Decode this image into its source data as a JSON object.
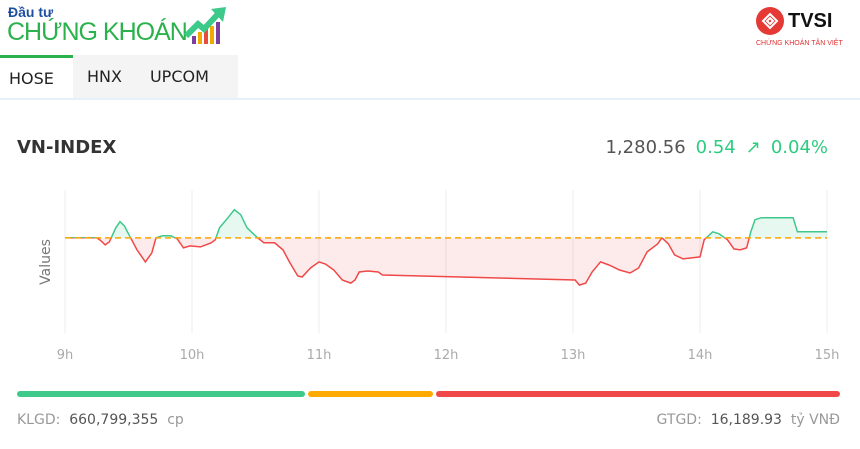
{
  "brand": {
    "logo_small": "Đầu tư",
    "logo_big": "CHỨNG KHOÁN",
    "partner_logo": "TVSI",
    "partner_sub": "CHỨNG KHOÁN TÂN VIỆT",
    "partner_color": "#e53935"
  },
  "tabs": [
    {
      "label": "HOSE",
      "active": true
    },
    {
      "label": "HNX",
      "active": false
    },
    {
      "label": "UPCOM",
      "active": false
    }
  ],
  "index": {
    "name": "VN-INDEX",
    "price": "1,280.56",
    "change": "0.54",
    "arrow_icon": "arrow-up-right-icon",
    "arrow": "↗",
    "change_pct": "0.04%",
    "color_up": "#2ecc80",
    "color_down": "#f04848"
  },
  "chart_data": {
    "type": "line",
    "ylabel": "Values",
    "xlabel": "",
    "x_ticks": [
      "9h",
      "10h",
      "11h",
      "12h",
      "13h",
      "14h",
      "15h"
    ],
    "xlim": [
      "09:00",
      "15:00"
    ],
    "ylim": [
      1271.5,
      1284.3
    ],
    "y_tick_labels": false,
    "grid": "vertical",
    "reference": 1280.02,
    "reference_color": "#ffa500",
    "points": [
      [
        "09:00",
        1280.02
      ],
      [
        "09:15",
        1280.02
      ],
      [
        "09:17",
        1279.75
      ],
      [
        "09:19",
        1279.39
      ],
      [
        "09:21",
        1279.66
      ],
      [
        "09:24",
        1280.92
      ],
      [
        "09:26",
        1281.46
      ],
      [
        "09:28",
        1281.1
      ],
      [
        "09:31",
        1280.02
      ],
      [
        "09:34",
        1278.94
      ],
      [
        "09:38",
        1277.86
      ],
      [
        "09:41",
        1278.67
      ],
      [
        "09:43",
        1280.02
      ],
      [
        "09:46",
        1280.2
      ],
      [
        "09:50",
        1280.2
      ],
      [
        "09:53",
        1279.93
      ],
      [
        "09:56",
        1279.12
      ],
      [
        "09:59",
        1279.3
      ],
      [
        "10:04",
        1279.21
      ],
      [
        "10:09",
        1279.57
      ],
      [
        "10:11",
        1279.84
      ],
      [
        "10:13",
        1280.92
      ],
      [
        "10:17",
        1281.82
      ],
      [
        "10:20",
        1282.54
      ],
      [
        "10:23",
        1282.09
      ],
      [
        "10:26",
        1280.92
      ],
      [
        "10:31",
        1280.02
      ],
      [
        "10:34",
        1279.57
      ],
      [
        "10:39",
        1279.57
      ],
      [
        "10:43",
        1278.94
      ],
      [
        "10:46",
        1277.86
      ],
      [
        "10:50",
        1276.6
      ],
      [
        "10:52",
        1276.51
      ],
      [
        "10:56",
        1277.32
      ],
      [
        "11:00",
        1277.86
      ],
      [
        "11:03",
        1277.68
      ],
      [
        "11:07",
        1277.14
      ],
      [
        "11:11",
        1276.24
      ],
      [
        "11:15",
        1275.97
      ],
      [
        "11:17",
        1276.24
      ],
      [
        "11:19",
        1276.96
      ],
      [
        "11:23",
        1277.05
      ],
      [
        "11:28",
        1276.96
      ],
      [
        "11:30",
        1276.69
      ],
      [
        "13:01",
        1276.24
      ],
      [
        "13:03",
        1275.79
      ],
      [
        "13:06",
        1275.97
      ],
      [
        "13:09",
        1276.96
      ],
      [
        "13:13",
        1277.86
      ],
      [
        "13:17",
        1277.59
      ],
      [
        "13:22",
        1277.14
      ],
      [
        "13:27",
        1276.87
      ],
      [
        "13:31",
        1277.32
      ],
      [
        "13:35",
        1278.76
      ],
      [
        "13:40",
        1279.48
      ],
      [
        "13:42",
        1280.02
      ],
      [
        "13:45",
        1279.48
      ],
      [
        "13:48",
        1278.49
      ],
      [
        "13:52",
        1278.13
      ],
      [
        "13:56",
        1278.22
      ],
      [
        "14:00",
        1278.31
      ],
      [
        "14:02",
        1279.84
      ],
      [
        "14:06",
        1280.56
      ],
      [
        "14:09",
        1280.38
      ],
      [
        "14:13",
        1279.84
      ],
      [
        "14:16",
        1279.03
      ],
      [
        "14:19",
        1278.94
      ],
      [
        "14:22",
        1279.12
      ],
      [
        "14:24",
        1280.56
      ],
      [
        "14:26",
        1281.64
      ],
      [
        "14:29",
        1281.82
      ],
      [
        "14:44",
        1281.82
      ],
      [
        "14:46",
        1280.56
      ],
      [
        "15:00",
        1280.56
      ]
    ]
  },
  "breadth": {
    "up_fraction": 0.353,
    "unchanged_fraction": 0.152,
    "down_fraction": 0.495,
    "up_color": "#3cc98a",
    "unchanged_color": "#ffaa00",
    "down_color": "#f04848"
  },
  "footer": {
    "volume_label": "KLGD:",
    "volume_value": "660,799,355",
    "volume_unit": "cp",
    "value_label": "GTGD:",
    "value_value": "16,189.93",
    "value_unit": "tỷ VNĐ"
  }
}
